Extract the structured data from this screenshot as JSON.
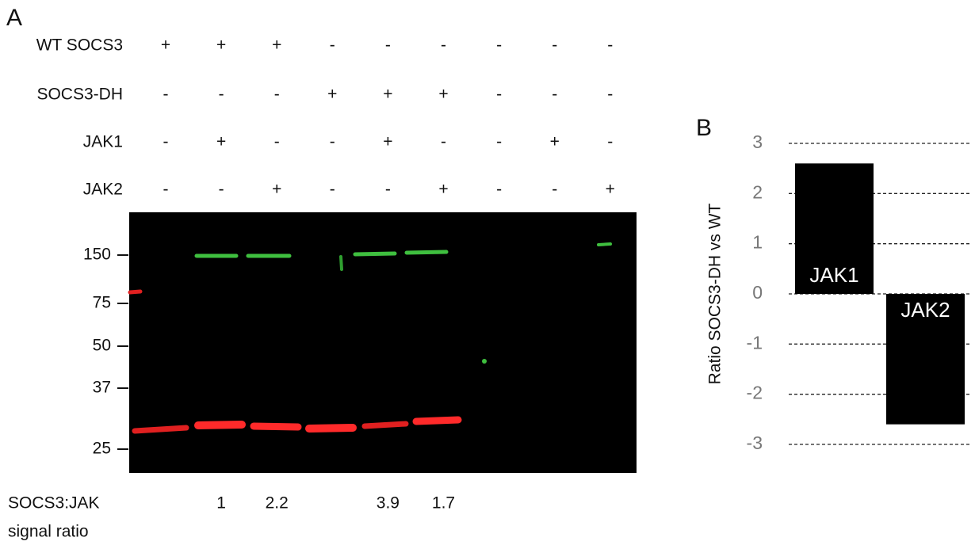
{
  "panel_a": {
    "label": "A",
    "rows": [
      {
        "label": "WT SOCS3",
        "signs": [
          "+",
          "+",
          "+",
          "-",
          "-",
          "-",
          "-",
          "-",
          "-"
        ]
      },
      {
        "label": "SOCS3-DH",
        "signs": [
          "-",
          "-",
          "-",
          "+",
          "+",
          "+",
          "-",
          "-",
          "-"
        ]
      },
      {
        "label": "JAK1",
        "signs": [
          "-",
          "+",
          "-",
          "-",
          "+",
          "-",
          "-",
          "+",
          "-"
        ]
      },
      {
        "label": "JAK2",
        "signs": [
          "-",
          "-",
          "+",
          "-",
          "-",
          "+",
          "-",
          "-",
          "+"
        ]
      }
    ],
    "markers": [
      150,
      75,
      50,
      37,
      25
    ],
    "ratio_label": [
      "SOCS3:JAK",
      "signal ratio"
    ],
    "ratios": [
      null,
      "1",
      "2.2",
      null,
      "3.9",
      "1.7",
      null,
      null,
      null
    ]
  },
  "chart_data": {
    "type": "bar",
    "label": "B",
    "y_label": "Ratio SOCS3-DH vs WT",
    "categories": [
      "JAK1",
      "JAK2"
    ],
    "values": [
      2.6,
      -2.6
    ],
    "color": "#000000",
    "ylim": [
      -3,
      3
    ],
    "yticks": [
      -3,
      -2,
      -1,
      0,
      1,
      2,
      3
    ],
    "grid": true
  }
}
